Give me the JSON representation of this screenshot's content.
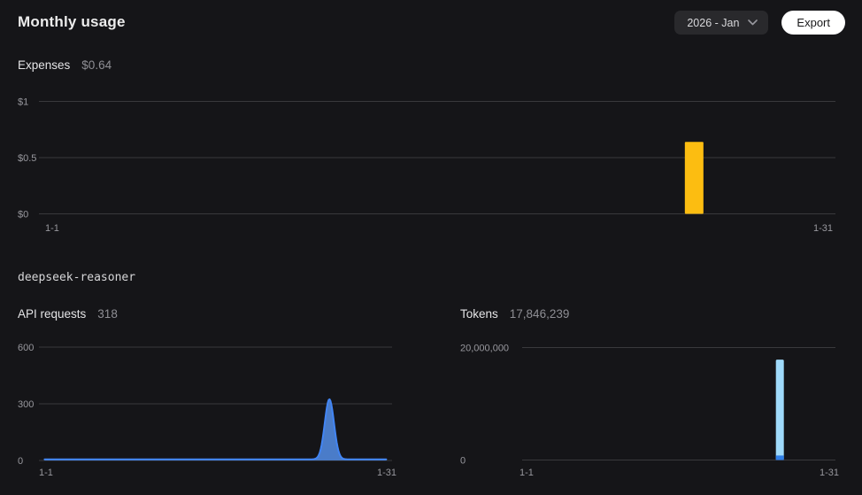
{
  "header": {
    "title": "Monthly usage",
    "period_select": {
      "value": "2026 - Jan"
    },
    "export_label": "Export"
  },
  "expenses": {
    "label": "Expenses",
    "value": "$0.64"
  },
  "model": {
    "name": "deepseek-reasoner",
    "api_requests": {
      "label": "API requests",
      "value": "318"
    },
    "tokens": {
      "label": "Tokens",
      "value": "17,846,239"
    }
  },
  "colors": {
    "background": "#151518",
    "title_text": "#ececec",
    "label_text": "#e4e4e6",
    "value_text": "#8e8e94",
    "axis_label": "#98989e",
    "gridline": "#39393c",
    "expense_bar": "#fcbd11",
    "request_line": "#4285f4",
    "request_fill": "#4a7cc9",
    "token_bar": "#9fdafa",
    "token_bar_accent": "#2f7fe8",
    "select_bg": "#29292c",
    "export_bg": "#ffffff"
  },
  "chart_data": [
    {
      "id": "expenses",
      "type": "bar",
      "title": "Expenses",
      "total": "$0.64",
      "ylabel": "USD",
      "ylim": [
        0,
        1
      ],
      "y_ticks": [
        {
          "label": "$1",
          "value": 1
        },
        {
          "label": "$0.5",
          "value": 0.5
        },
        {
          "label": "$0",
          "value": 0
        }
      ],
      "x_labels": [
        "1-1",
        "1-31"
      ],
      "peak_day": 26,
      "values": [
        0,
        0,
        0,
        0,
        0,
        0,
        0,
        0,
        0,
        0,
        0,
        0,
        0,
        0,
        0,
        0,
        0,
        0,
        0,
        0,
        0,
        0,
        0,
        0,
        0,
        0.64,
        0,
        0,
        0,
        0,
        0
      ],
      "color": "#fcbd11"
    },
    {
      "id": "api_requests",
      "type": "area",
      "title": "API requests",
      "total": "318",
      "ylim": [
        0,
        600
      ],
      "y_ticks": [
        {
          "label": "600",
          "value": 600
        },
        {
          "label": "300",
          "value": 300
        },
        {
          "label": "0",
          "value": 0
        }
      ],
      "x_labels": [
        "1-1",
        "1-31"
      ],
      "peak_day": 26,
      "values": [
        0,
        0,
        0,
        0,
        0,
        0,
        0,
        0,
        0,
        0,
        0,
        0,
        0,
        0,
        0,
        0,
        0,
        0,
        0,
        0,
        0,
        0,
        0,
        0,
        0,
        318,
        0,
        0,
        0,
        0,
        0
      ],
      "color": "#4285f4",
      "fill_color": "#4a7cc9"
    },
    {
      "id": "tokens",
      "type": "bar",
      "title": "Tokens",
      "total": "17,846,239",
      "ylim": [
        0,
        20000000
      ],
      "y_ticks": [
        {
          "label": "20,000,000",
          "value": 20000000
        },
        {
          "label": "0",
          "value": 0
        }
      ],
      "x_labels": [
        "1-1",
        "1-31"
      ],
      "peak_day": 26,
      "values": [
        0,
        0,
        0,
        0,
        0,
        0,
        0,
        0,
        0,
        0,
        0,
        0,
        0,
        0,
        0,
        0,
        0,
        0,
        0,
        0,
        0,
        0,
        0,
        0,
        0,
        17846239,
        0,
        0,
        0,
        0,
        0
      ],
      "color": "#9fdafa",
      "accent_color": "#2f7fe8",
      "accent_fraction": 0.045
    }
  ]
}
